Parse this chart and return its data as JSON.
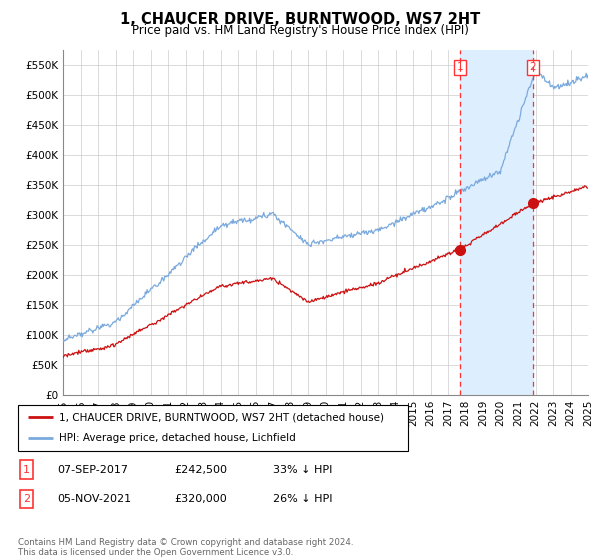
{
  "title": "1, CHAUCER DRIVE, BURNTWOOD, WS7 2HT",
  "subtitle": "Price paid vs. HM Land Registry's House Price Index (HPI)",
  "ylabel_ticks": [
    "£0",
    "£50K",
    "£100K",
    "£150K",
    "£200K",
    "£250K",
    "£300K",
    "£350K",
    "£400K",
    "£450K",
    "£500K",
    "£550K"
  ],
  "ytick_values": [
    0,
    50000,
    100000,
    150000,
    200000,
    250000,
    300000,
    350000,
    400000,
    450000,
    500000,
    550000
  ],
  "ylim": [
    0,
    575000
  ],
  "purchase1_date": "07-SEP-2017",
  "purchase1_price": 242500,
  "purchase1_x": 2017.69,
  "purchase2_date": "05-NOV-2021",
  "purchase2_price": 320000,
  "purchase2_x": 2021.84,
  "hpi_color": "#7aaadd",
  "price_color": "#cc1111",
  "vline_color": "#ff3333",
  "shade_color": "#ddeeff",
  "legend_line1": "1, CHAUCER DRIVE, BURNTWOOD, WS7 2HT (detached house)",
  "legend_line2": "HPI: Average price, detached house, Lichfield",
  "footnote": "Contains HM Land Registry data © Crown copyright and database right 2024.\nThis data is licensed under the Open Government Licence v3.0.",
  "xmin": 1995,
  "xmax": 2025,
  "background_color": "#ffffff",
  "grid_color": "#cccccc",
  "title_fontsize": 10.5,
  "subtitle_fontsize": 8.5,
  "axis_fontsize": 7.5
}
